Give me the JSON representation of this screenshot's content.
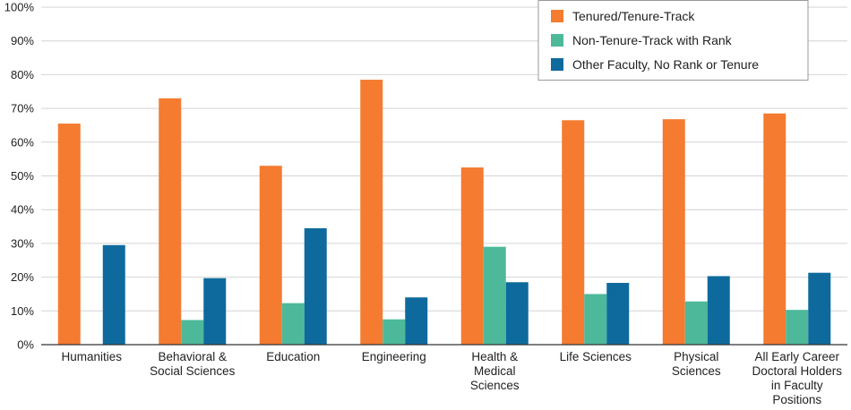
{
  "chart_data": {
    "type": "bar",
    "title": "",
    "xlabel": "",
    "ylabel": "",
    "ylim": [
      0,
      100
    ],
    "ytick_step": 10,
    "ytick_suffix": "%",
    "grid": true,
    "legend_position": "top-right",
    "categories": [
      [
        "Humanities"
      ],
      [
        "Behavioral &",
        "Social Sciences"
      ],
      [
        "Education"
      ],
      [
        "Engineering"
      ],
      [
        "Health &",
        "Medical",
        "Sciences"
      ],
      [
        "Life Sciences"
      ],
      [
        "Physical",
        "Sciences"
      ],
      [
        "All Early Career",
        "Doctoral Holders",
        "in Faculty",
        "Positions"
      ]
    ],
    "series": [
      {
        "name": "Tenured/Tenure-Track",
        "color": "#F47B30",
        "values": [
          65.5,
          73,
          53,
          78.5,
          52.5,
          66.5,
          66.8,
          68.5
        ]
      },
      {
        "name": "Non-Tenure-Track with Rank",
        "color": "#4DB99A",
        "values": [
          null,
          7.3,
          12.3,
          7.5,
          29,
          15,
          12.8,
          10.3
        ]
      },
      {
        "name": "Other Faculty, No Rank or Tenure",
        "color": "#0E6A9C",
        "values": [
          29.5,
          19.7,
          34.5,
          14,
          18.5,
          18.3,
          20.3,
          21.3
        ]
      }
    ]
  }
}
